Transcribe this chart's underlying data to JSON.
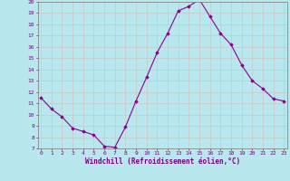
{
  "hours": [
    0,
    1,
    2,
    3,
    4,
    5,
    6,
    7,
    8,
    9,
    10,
    11,
    12,
    13,
    14,
    15,
    16,
    17,
    18,
    19,
    20,
    21,
    22,
    23
  ],
  "values": [
    11.5,
    10.5,
    9.8,
    8.8,
    8.5,
    8.2,
    7.2,
    7.1,
    8.9,
    11.2,
    13.3,
    15.5,
    17.2,
    19.2,
    19.6,
    20.2,
    18.7,
    17.2,
    16.2,
    14.4,
    13.0,
    12.3,
    11.4,
    11.2
  ],
  "line_color": "#8B008B",
  "marker": "D",
  "marker_size": 1.8,
  "bg_color": "#b8e8ee",
  "grid_color": "#d0d0d0",
  "xlabel": "Windchill (Refroidissement éolien,°C)",
  "ylim": [
    7,
    20
  ],
  "yticks": [
    7,
    8,
    9,
    10,
    11,
    12,
    13,
    14,
    15,
    16,
    17,
    18,
    19,
    20
  ],
  "xticks": [
    0,
    1,
    2,
    3,
    4,
    5,
    6,
    7,
    8,
    9,
    10,
    11,
    12,
    13,
    14,
    15,
    16,
    17,
    18,
    19,
    20,
    21,
    22,
    23
  ],
  "axis_color": "#7B0080",
  "tick_color": "#7B0080",
  "label_color": "#7B0080",
  "spine_color": "#888888"
}
